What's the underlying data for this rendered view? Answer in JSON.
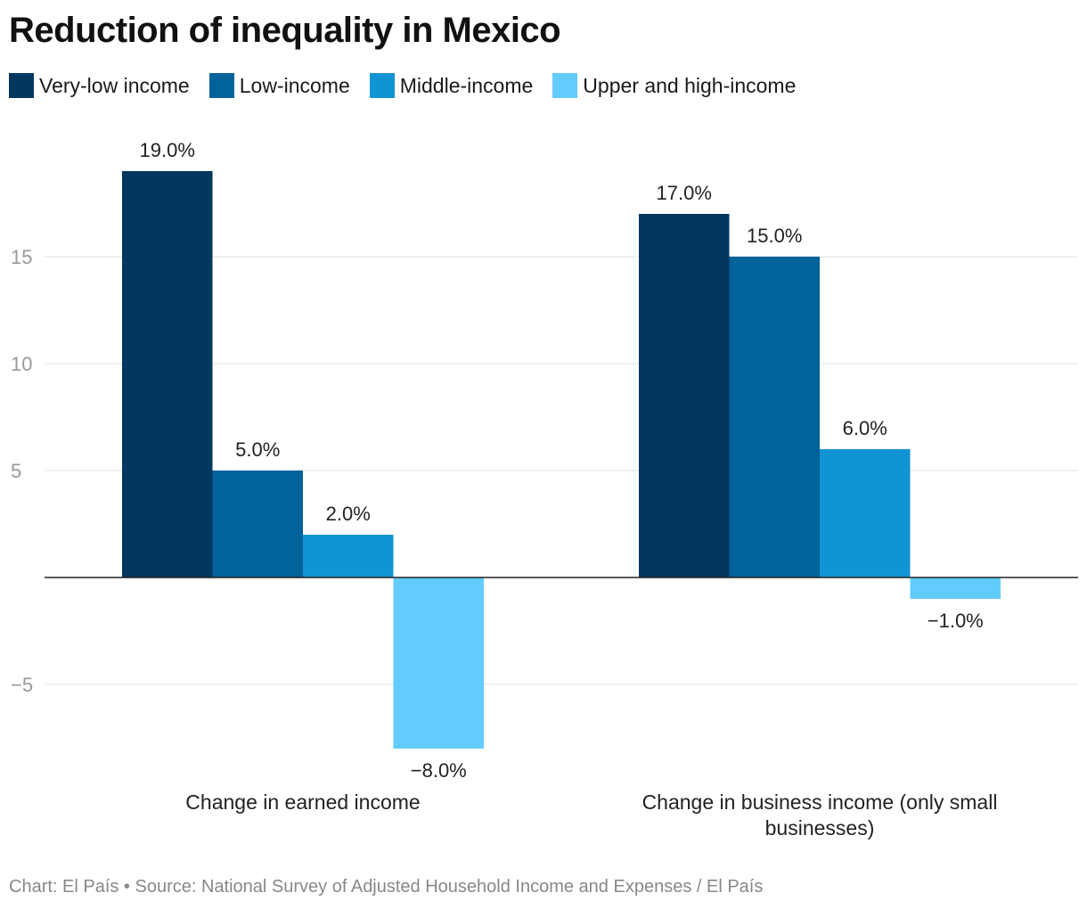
{
  "chart_data": {
    "type": "bar",
    "title": "Reduction of inequality in Mexico",
    "categories": [
      "Change in earned income",
      "Change in business income (only small businesses)"
    ],
    "series": [
      {
        "name": "Very-low income",
        "color": "#02375F",
        "values": [
          19.0,
          17.0
        ],
        "labels": [
          "19.0%",
          "17.0%"
        ]
      },
      {
        "name": "Low-income",
        "color": "#02629A",
        "values": [
          5.0,
          15.0
        ],
        "labels": [
          "5.0%",
          "15.0%"
        ]
      },
      {
        "name": "Middle-income",
        "color": "#1194D3",
        "values": [
          2.0,
          6.0
        ],
        "labels": [
          "2.0%",
          "6.0%"
        ]
      },
      {
        "name": "Upper and high-income",
        "color": "#62CCFD",
        "values": [
          -8.0,
          -1.0
        ],
        "labels": [
          "−8.0%",
          "−1.0%"
        ]
      }
    ],
    "ylim": [
      -9.5,
      20
    ],
    "yticks": [
      -5,
      5,
      10,
      15
    ],
    "ytick_labels": [
      "−5",
      "5",
      "10",
      "15"
    ],
    "grid": true,
    "legend_position": "top-left",
    "footer": "Chart: El País • Source: National Survey of Adjusted Household Income and Expenses / El País"
  }
}
